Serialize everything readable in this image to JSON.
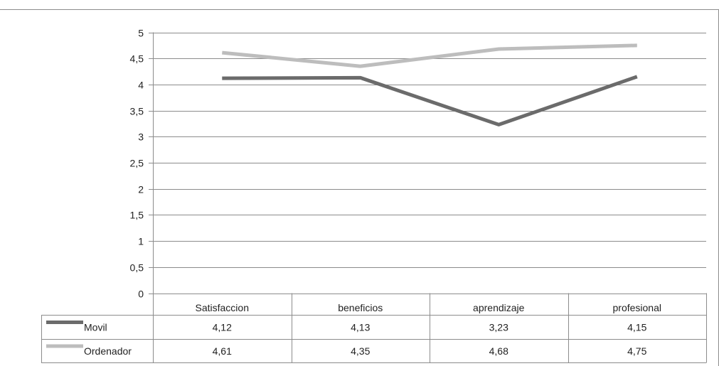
{
  "chart_data": {
    "type": "line",
    "categories": [
      "Satisfaccion",
      "beneficios",
      "aprendizaje",
      "profesional"
    ],
    "series": [
      {
        "name": "Movil",
        "values": [
          4.12,
          4.13,
          3.23,
          4.15
        ],
        "color": "#6b6b6b",
        "value_labels": [
          "4,12",
          "4,13",
          "3,23",
          "4,15"
        ]
      },
      {
        "name": "Ordenador",
        "values": [
          4.61,
          4.35,
          4.68,
          4.75
        ],
        "color": "#bdbdbd",
        "value_labels": [
          "4,61",
          "4,35",
          "4,68",
          "4,75"
        ]
      }
    ],
    "ylim": [
      0,
      5
    ],
    "yticks": [
      0,
      0.5,
      1,
      1.5,
      2,
      2.5,
      3,
      3.5,
      4,
      4.5,
      5
    ],
    "ytick_labels": [
      "0",
      "0,5",
      "1",
      "1,5",
      "2",
      "2,5",
      "3",
      "3,5",
      "4",
      "4,5",
      "5"
    ],
    "grid": true,
    "legend": "data-table"
  }
}
